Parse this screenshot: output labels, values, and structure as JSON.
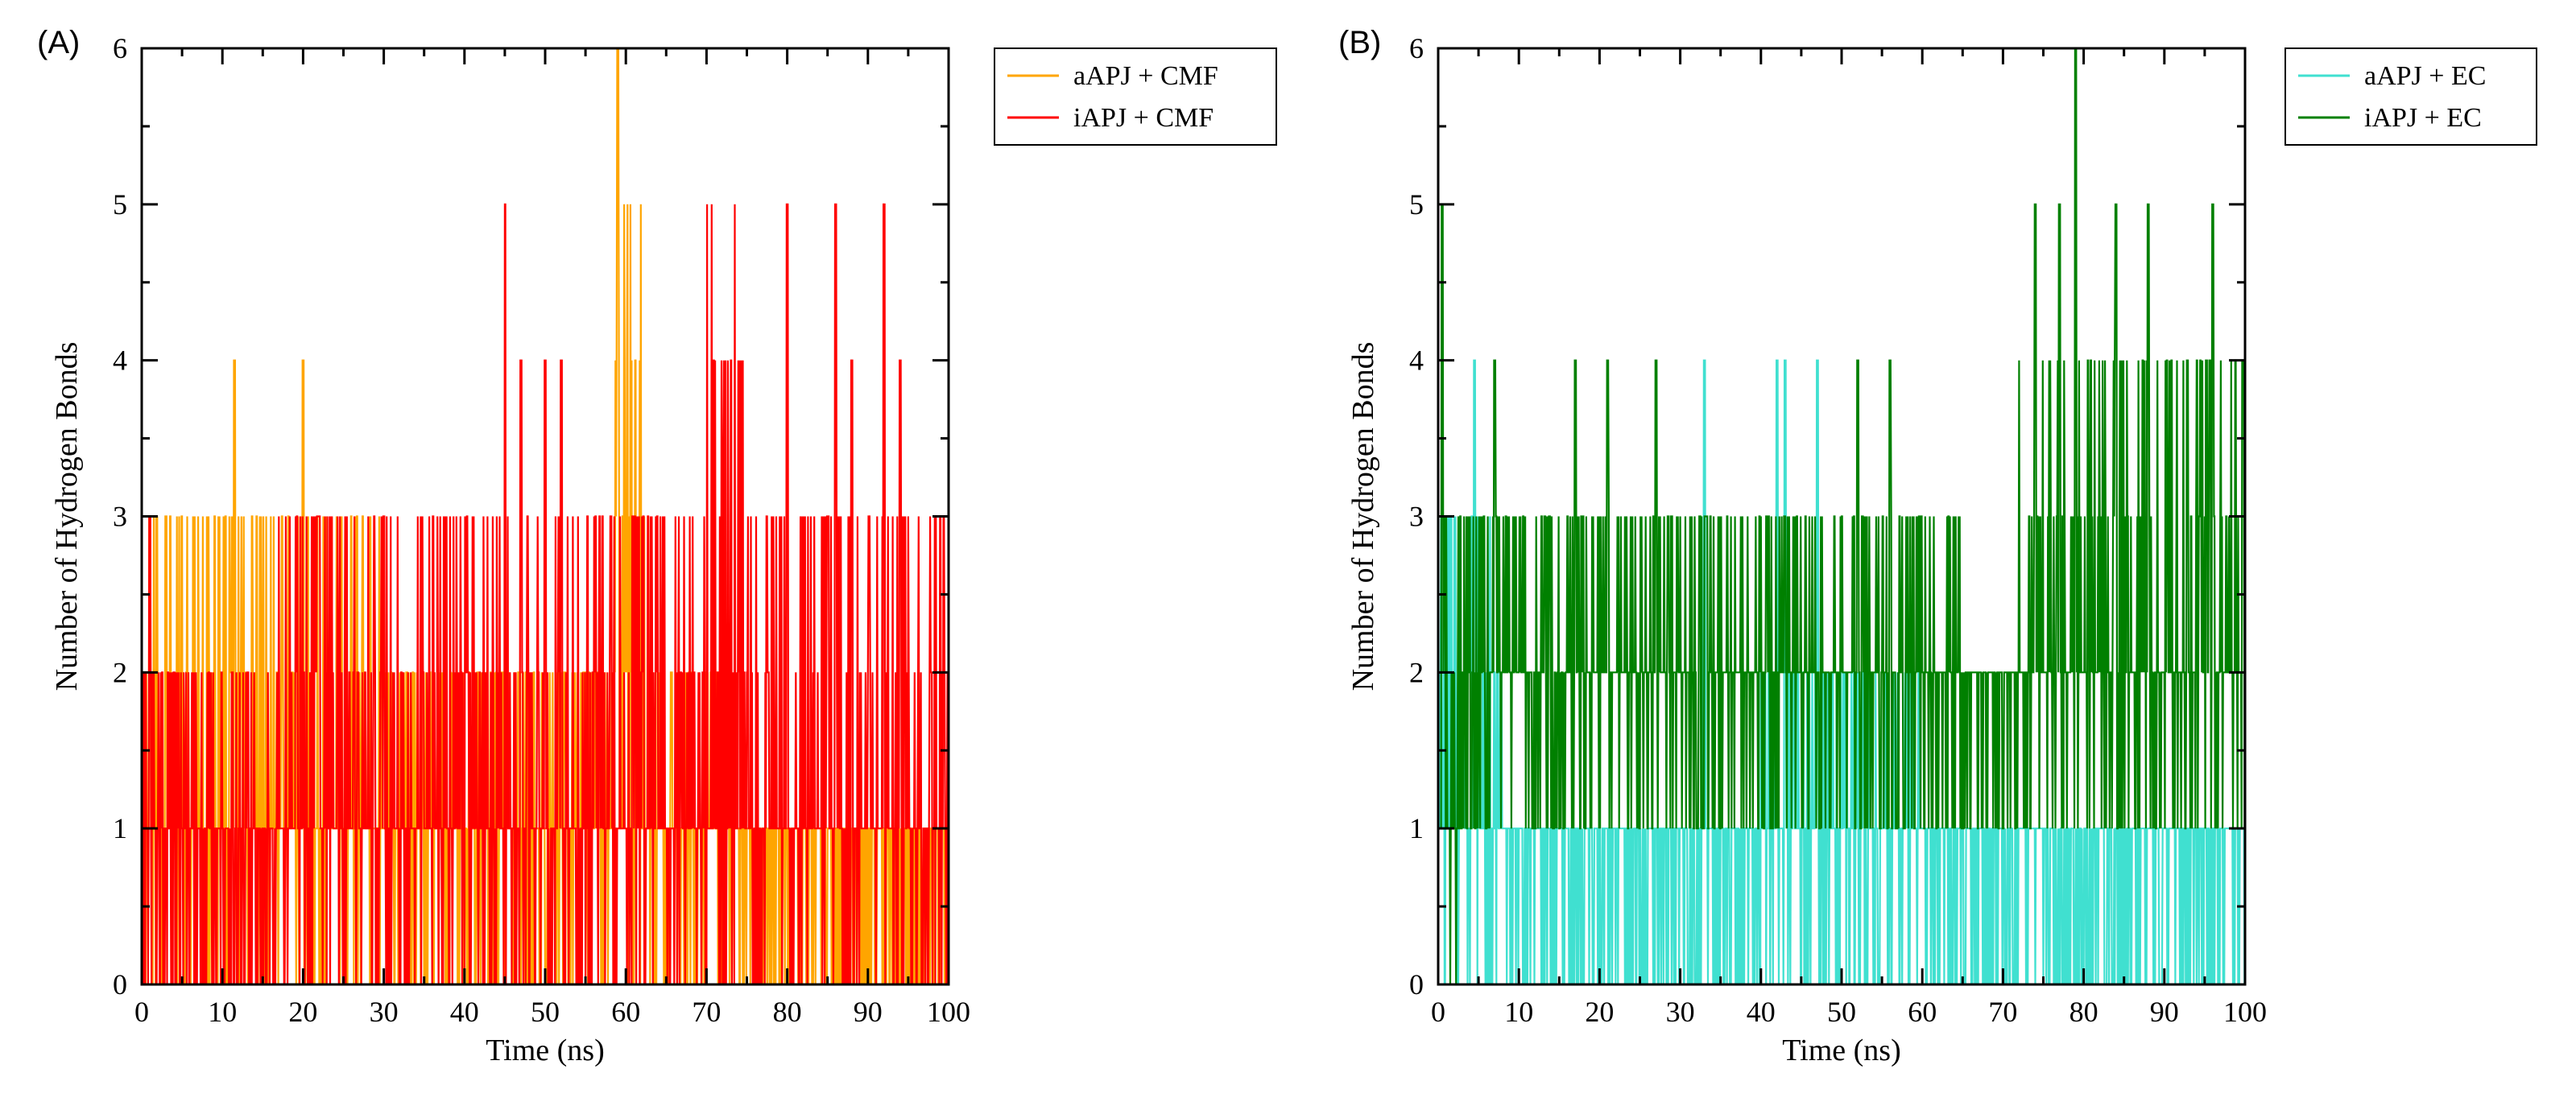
{
  "chart_data": [
    {
      "type": "line",
      "panel_label": "(A)",
      "xlabel": "Time (ns)",
      "ylabel": "Number of Hydrogen Bonds",
      "xlim": [
        0,
        100
      ],
      "ylim": [
        0,
        6
      ],
      "xticks": [
        0,
        10,
        20,
        30,
        40,
        50,
        60,
        70,
        80,
        90,
        100
      ],
      "yticks": [
        0,
        1,
        2,
        3,
        4,
        5,
        6
      ],
      "grid": false,
      "legend_position": "outside-top-right",
      "series": [
        {
          "name": "aAPJ + CMF",
          "color": "#ffa500",
          "description_of_values": "integer counts sampled over 0-100 ns",
          "segments": [
            {
              "start": 0,
              "end": 8,
              "typical": [
                0,
                3
              ],
              "spikes": [
                [
                  1,
                  3
                ],
                [
                  3,
                  3
                ]
              ]
            },
            {
              "start": 8,
              "end": 17,
              "typical": [
                0,
                3
              ],
              "spikes": [
                [
                  11.5,
                  4
                ]
              ]
            },
            {
              "start": 17,
              "end": 30,
              "typical": [
                0,
                3
              ],
              "spikes": [
                [
                  20,
                  4
                ]
              ]
            },
            {
              "start": 30,
              "end": 58,
              "typical": [
                0,
                2
              ],
              "spikes": []
            },
            {
              "start": 58,
              "end": 63,
              "typical": [
                0,
                5
              ],
              "spikes": [
                [
                  59,
                  6
                ]
              ]
            },
            {
              "start": 63,
              "end": 73,
              "typical": [
                0,
                2
              ],
              "spikes": []
            },
            {
              "start": 73,
              "end": 100,
              "typical": [
                0,
                1
              ],
              "spikes": []
            }
          ]
        },
        {
          "name": "iAPJ + CMF",
          "color": "#ff0000",
          "description_of_values": "integer counts sampled over 0-100 ns",
          "segments": [
            {
              "start": 0,
              "end": 17,
              "typical": [
                0,
                2
              ],
              "spikes": [
                [
                  1,
                  3
                ],
                [
                  4,
                  2
                ]
              ]
            },
            {
              "start": 17,
              "end": 45,
              "typical": [
                0,
                3
              ],
              "spikes": [
                [
                  22,
                  3
                ],
                [
                  30,
                  3
                ]
              ]
            },
            {
              "start": 45,
              "end": 70,
              "typical": [
                0,
                3
              ],
              "spikes": [
                [
                  45,
                  5
                ],
                [
                  47,
                  4
                ],
                [
                  50,
                  4
                ],
                [
                  52,
                  4
                ]
              ]
            },
            {
              "start": 70,
              "end": 75,
              "typical": [
                0,
                5
              ],
              "spikes": []
            },
            {
              "start": 75,
              "end": 100,
              "typical": [
                0,
                3
              ],
              "spikes": [
                [
                  80,
                  5
                ],
                [
                  86,
                  5
                ],
                [
                  92,
                  5
                ],
                [
                  88,
                  4
                ],
                [
                  94,
                  4
                ]
              ]
            }
          ]
        }
      ]
    },
    {
      "type": "line",
      "panel_label": "(B)",
      "xlabel": "Time (ns)",
      "ylabel": "Number of Hydrogen Bonds",
      "xlim": [
        0,
        100
      ],
      "ylim": [
        0,
        6
      ],
      "xticks": [
        0,
        10,
        20,
        30,
        40,
        50,
        60,
        70,
        80,
        90,
        100
      ],
      "yticks": [
        0,
        1,
        2,
        3,
        4,
        5,
        6
      ],
      "grid": false,
      "legend_position": "outside-top-right",
      "series": [
        {
          "name": "aAPJ + EC",
          "color": "#40e0d0",
          "description_of_values": "integer counts sampled over 0-100 ns",
          "segments": [
            {
              "start": 0,
              "end": 8,
              "typical": [
                0,
                3
              ],
              "spikes": [
                [
                  4.5,
                  4
                ]
              ]
            },
            {
              "start": 8,
              "end": 40,
              "typical": [
                0,
                1
              ],
              "spikes": [
                [
                  33,
                  4
                ]
              ]
            },
            {
              "start": 40,
              "end": 60,
              "typical": [
                0,
                2
              ],
              "spikes": [
                [
                  42,
                  4
                ],
                [
                  43,
                  4
                ],
                [
                  47,
                  4
                ]
              ]
            },
            {
              "start": 60,
              "end": 100,
              "typical": [
                0,
                1
              ],
              "spikes": []
            }
          ]
        },
        {
          "name": "iAPJ + EC",
          "color": "#008000",
          "description_of_values": "integer counts sampled over 0-100 ns",
          "segments": [
            {
              "start": 0,
              "end": 3,
              "typical": [
                0,
                3
              ],
              "spikes": [
                [
                  0.5,
                  5
                ]
              ]
            },
            {
              "start": 3,
              "end": 40,
              "typical": [
                1,
                3
              ],
              "spikes": [
                [
                  7,
                  4
                ],
                [
                  17,
                  4
                ],
                [
                  21,
                  4
                ],
                [
                  27,
                  4
                ]
              ]
            },
            {
              "start": 40,
              "end": 66,
              "typical": [
                1,
                3
              ],
              "spikes": [
                [
                  52,
                  4
                ],
                [
                  56,
                  4
                ]
              ]
            },
            {
              "start": 66,
              "end": 72,
              "typical": [
                1,
                2
              ],
              "spikes": []
            },
            {
              "start": 72,
              "end": 100,
              "typical": [
                1,
                4
              ],
              "spikes": [
                [
                  74,
                  5
                ],
                [
                  77,
                  5
                ],
                [
                  79,
                  6
                ],
                [
                  84,
                  5
                ],
                [
                  88,
                  5
                ],
                [
                  96,
                  5
                ]
              ]
            }
          ]
        }
      ]
    }
  ]
}
